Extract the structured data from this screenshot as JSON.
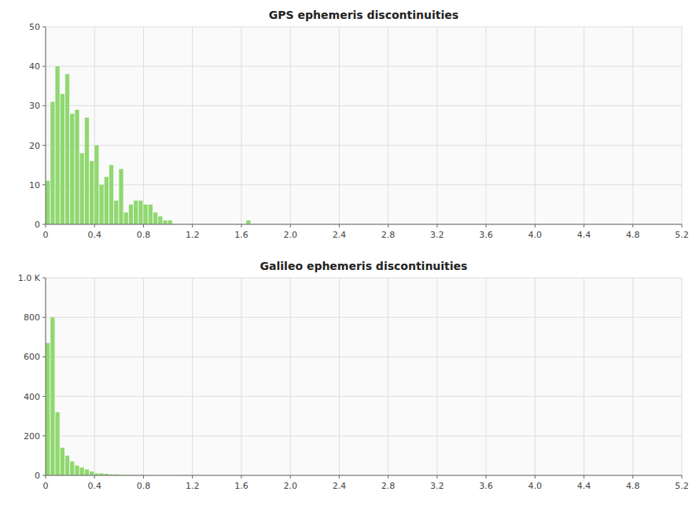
{
  "chart_data": [
    {
      "type": "histogram",
      "title": "GPS ephemeris discontinuities",
      "color": "#90d870",
      "grid": true,
      "bins": [
        0,
        0.04,
        0.08,
        0.12,
        0.16,
        0.2,
        0.24,
        0.28,
        0.32,
        0.36,
        0.4,
        0.44,
        0.48,
        0.52,
        0.56,
        0.6,
        0.64,
        0.68,
        0.72,
        0.76,
        0.8,
        0.84,
        0.88,
        0.92,
        0.96,
        1,
        1.04,
        1.08,
        1.12,
        1.16,
        1.2,
        1.24,
        1.28,
        1.32,
        1.36,
        1.4,
        1.44,
        1.48,
        1.52,
        1.56,
        1.6,
        1.64,
        1.68,
        1.72,
        1.76,
        1.8,
        1.84,
        1.88,
        1.92,
        1.96,
        2,
        2.04,
        2.08,
        2.12,
        2.16,
        2.2,
        2.24,
        2.28,
        2.32,
        2.36,
        2.4,
        2.44,
        2.48,
        2.52,
        2.56,
        2.6,
        2.64,
        2.68,
        2.72,
        2.76,
        2.8,
        2.84,
        2.88,
        2.92,
        2.96,
        3,
        3.04,
        3.08,
        3.12,
        3.16,
        3.2,
        3.24,
        3.28,
        3.32,
        3.36,
        3.4,
        3.44,
        3.48,
        3.52,
        3.56,
        3.6,
        3.64,
        3.68,
        3.72,
        3.76,
        3.8,
        3.84,
        3.88,
        3.92,
        3.96,
        4,
        4.04,
        4.08,
        4.12,
        4.16,
        4.2,
        4.24,
        4.28,
        4.32,
        4.36,
        4.4,
        4.44,
        4.48,
        4.52,
        4.56,
        4.6,
        4.64,
        4.68,
        4.72,
        4.76,
        4.8,
        4.84,
        4.88,
        4.92,
        4.96,
        5,
        5.04,
        5.08,
        5.12,
        5.16,
        5.2
      ],
      "values": [
        11,
        31,
        40,
        33,
        38,
        28,
        29,
        18,
        27,
        16,
        20,
        10,
        12,
        15,
        6,
        14,
        3,
        5,
        6,
        6,
        5,
        5,
        3,
        2,
        1,
        1,
        0,
        0,
        0,
        0,
        0,
        0,
        0,
        0,
        0,
        0,
        0,
        0,
        0,
        0,
        0,
        1,
        0,
        0,
        0,
        0,
        0,
        0,
        0,
        0,
        0,
        0,
        0,
        0,
        0,
        0,
        0,
        0,
        0,
        0,
        0,
        0,
        0,
        0,
        0,
        0,
        0,
        0,
        0,
        0,
        0,
        0,
        0,
        0,
        0,
        0,
        0,
        0,
        0,
        0,
        0,
        0,
        0,
        0,
        0,
        0,
        0,
        0,
        0,
        0,
        0,
        0,
        0,
        0,
        0,
        0,
        0,
        0,
        0,
        0,
        0,
        0,
        0,
        0,
        0,
        0,
        0,
        0,
        0,
        0,
        0,
        0,
        0,
        0,
        0,
        0,
        0,
        0,
        0,
        0,
        0,
        0,
        0,
        0,
        0,
        0,
        0,
        0,
        0,
        0
      ],
      "xlim": [
        0,
        5.2
      ],
      "xticks": [
        0,
        0.4,
        0.8,
        1.2,
        1.6,
        {
          "value": 2,
          "label": "2.0"
        },
        2.4,
        2.8,
        3.2,
        3.6,
        {
          "value": 4,
          "label": "4.0"
        },
        4.4,
        4.8,
        5.2
      ],
      "ylim": [
        0,
        50
      ],
      "yticks": [
        0,
        10,
        20,
        30,
        40,
        50
      ]
    },
    {
      "type": "histogram",
      "title": "Galileo ephemeris discontinuities",
      "color": "#90d870",
      "grid": true,
      "bins": [
        0,
        0.04,
        0.08,
        0.12,
        0.16,
        0.2,
        0.24,
        0.28,
        0.32,
        0.36,
        0.4,
        0.44,
        0.48,
        0.52,
        0.56,
        0.6,
        0.64,
        0.68,
        0.72,
        0.76,
        0.8,
        0.84,
        0.88,
        0.92,
        0.96,
        1,
        1.04,
        1.08,
        1.12,
        1.16,
        1.2,
        1.24,
        1.28,
        1.32,
        1.36,
        1.4,
        1.44,
        1.48,
        1.52,
        1.56,
        1.6,
        1.64,
        1.68,
        1.72,
        1.76,
        1.8,
        1.84,
        1.88,
        1.92,
        1.96,
        2,
        2.04,
        2.08,
        2.12,
        2.16,
        2.2,
        2.24,
        2.28,
        2.32,
        2.36,
        2.4,
        2.44,
        2.48,
        2.52,
        2.56,
        2.6,
        2.64,
        2.68,
        2.72,
        2.76,
        2.8,
        2.84,
        2.88,
        2.92,
        2.96,
        3,
        3.04,
        3.08,
        3.12,
        3.16,
        3.2,
        3.24,
        3.28,
        3.32,
        3.36,
        3.4,
        3.44,
        3.48,
        3.52,
        3.56,
        3.6,
        3.64,
        3.68,
        3.72,
        3.76,
        3.8,
        3.84,
        3.88,
        3.92,
        3.96,
        4,
        4.04,
        4.08,
        4.12,
        4.16,
        4.2,
        4.24,
        4.28,
        4.32,
        4.36,
        4.4,
        4.44,
        4.48,
        4.52,
        4.56,
        4.6,
        4.64,
        4.68,
        4.72,
        4.76,
        4.8,
        4.84,
        4.88,
        4.92,
        4.96,
        5,
        5.04,
        5.08,
        5.12,
        5.16,
        5.2
      ],
      "values": [
        670,
        800,
        320,
        140,
        100,
        70,
        50,
        40,
        30,
        20,
        10,
        10,
        8,
        5,
        5,
        3,
        2,
        2,
        2,
        1,
        1,
        0,
        0,
        0,
        0,
        0,
        0,
        0,
        1,
        0,
        0,
        0,
        0,
        0,
        0,
        0,
        0,
        0,
        0,
        0,
        0,
        0,
        0,
        0,
        0,
        0,
        0,
        0,
        0,
        0,
        0,
        0,
        0,
        0,
        0,
        0,
        0,
        0,
        0,
        0,
        1,
        0,
        0,
        0,
        0,
        0,
        0,
        0,
        0,
        0,
        0,
        0,
        0,
        0,
        0,
        0,
        0,
        0,
        0,
        0,
        0,
        0,
        0,
        0,
        0,
        0,
        0,
        0,
        0,
        0,
        0,
        0,
        0,
        0,
        0,
        0,
        0,
        0,
        0,
        0,
        0,
        0,
        0,
        0,
        0,
        0,
        0,
        0,
        0,
        0,
        0,
        0,
        0,
        0,
        0,
        0,
        0,
        0,
        0,
        0,
        0,
        0,
        0,
        0,
        0,
        0,
        0,
        0,
        0,
        0
      ],
      "xlim": [
        0,
        5.2
      ],
      "xticks": [
        0,
        0.4,
        0.8,
        1.2,
        1.6,
        {
          "value": 2,
          "label": "2.0"
        },
        2.4,
        2.8,
        3.2,
        3.6,
        {
          "value": 4,
          "label": "4.0"
        },
        4.4,
        4.8,
        5.2
      ],
      "ylim": [
        0,
        1000
      ],
      "yticks": [
        0,
        200,
        400,
        600,
        800,
        {
          "value": 1000,
          "label": "1.0 K"
        }
      ]
    }
  ]
}
